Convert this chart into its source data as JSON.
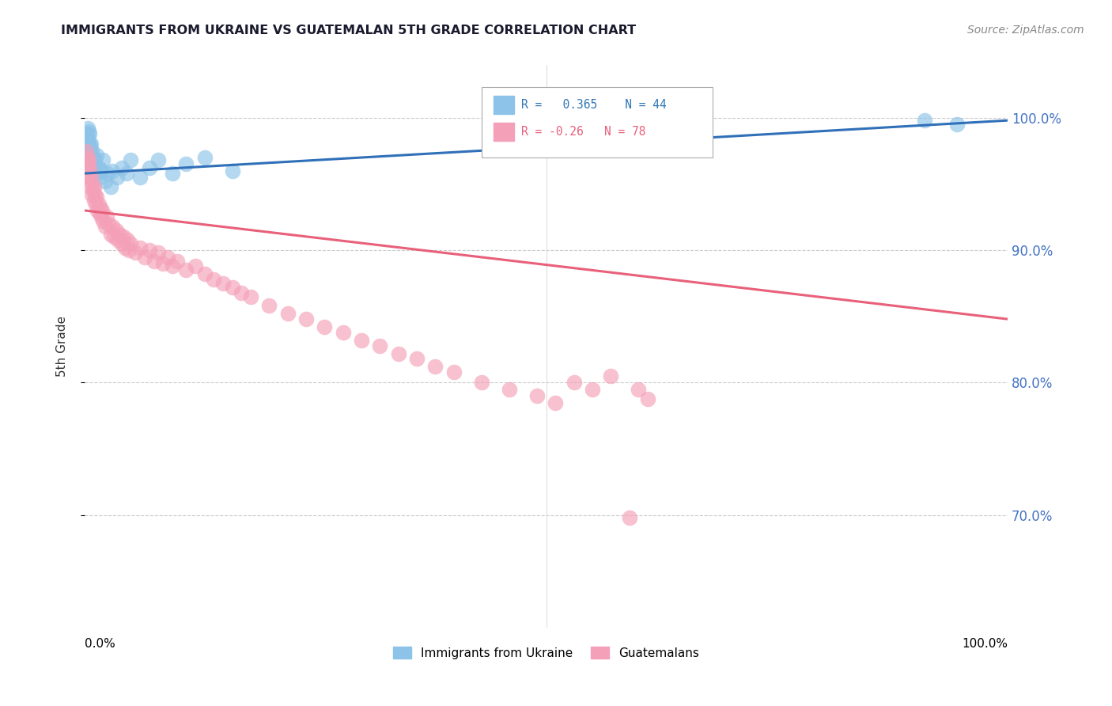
{
  "title": "IMMIGRANTS FROM UKRAINE VS GUATEMALAN 5TH GRADE CORRELATION CHART",
  "source": "Source: ZipAtlas.com",
  "ylabel": "5th Grade",
  "ytick_labels": [
    "100.0%",
    "90.0%",
    "80.0%",
    "70.0%"
  ],
  "ytick_values": [
    1.0,
    0.9,
    0.8,
    0.7
  ],
  "xlim": [
    0.0,
    1.0
  ],
  "ylim": [
    0.615,
    1.04
  ],
  "ukraine_R": 0.365,
  "ukraine_N": 44,
  "guatemalan_R": -0.26,
  "guatemalan_N": 78,
  "ukraine_color": "#8DC3E8",
  "guatemalan_color": "#F4A0B8",
  "ukraine_line_color": "#3070B8",
  "guatemalan_line_color": "#E8607A",
  "legend_label_ukraine": "Immigrants from Ukraine",
  "legend_label_guatemalan": "Guatemalans",
  "ukraine_x": [
    0.001,
    0.002,
    0.002,
    0.003,
    0.003,
    0.003,
    0.004,
    0.004,
    0.004,
    0.005,
    0.005,
    0.005,
    0.006,
    0.006,
    0.007,
    0.007,
    0.008,
    0.008,
    0.009,
    0.01,
    0.011,
    0.012,
    0.013,
    0.015,
    0.016,
    0.018,
    0.02,
    0.022,
    0.025,
    0.028,
    0.03,
    0.035,
    0.04,
    0.045,
    0.05,
    0.06,
    0.07,
    0.08,
    0.095,
    0.11,
    0.13,
    0.16,
    0.91,
    0.945
  ],
  "ukraine_y": [
    0.978,
    0.982,
    0.988,
    0.972,
    0.985,
    0.992,
    0.975,
    0.982,
    0.99,
    0.972,
    0.98,
    0.988,
    0.968,
    0.978,
    0.972,
    0.98,
    0.965,
    0.975,
    0.97,
    0.962,
    0.968,
    0.958,
    0.972,
    0.962,
    0.955,
    0.96,
    0.968,
    0.952,
    0.958,
    0.948,
    0.96,
    0.955,
    0.962,
    0.958,
    0.968,
    0.955,
    0.962,
    0.968,
    0.958,
    0.965,
    0.97,
    0.96,
    0.998,
    0.995
  ],
  "guatemalan_x": [
    0.002,
    0.003,
    0.003,
    0.004,
    0.004,
    0.005,
    0.005,
    0.006,
    0.007,
    0.008,
    0.008,
    0.009,
    0.01,
    0.01,
    0.011,
    0.012,
    0.013,
    0.014,
    0.015,
    0.016,
    0.017,
    0.018,
    0.019,
    0.02,
    0.022,
    0.024,
    0.026,
    0.028,
    0.03,
    0.032,
    0.034,
    0.036,
    0.038,
    0.04,
    0.042,
    0.044,
    0.046,
    0.048,
    0.05,
    0.055,
    0.06,
    0.065,
    0.07,
    0.075,
    0.08,
    0.085,
    0.09,
    0.095,
    0.1,
    0.11,
    0.12,
    0.13,
    0.14,
    0.15,
    0.16,
    0.17,
    0.18,
    0.2,
    0.22,
    0.24,
    0.26,
    0.28,
    0.3,
    0.32,
    0.34,
    0.36,
    0.38,
    0.4,
    0.43,
    0.46,
    0.49,
    0.51,
    0.53,
    0.55,
    0.57,
    0.59,
    0.6,
    0.61
  ],
  "guatemalan_y": [
    0.975,
    0.97,
    0.965,
    0.96,
    0.968,
    0.955,
    0.962,
    0.948,
    0.955,
    0.942,
    0.95,
    0.945,
    0.938,
    0.948,
    0.942,
    0.935,
    0.94,
    0.93,
    0.935,
    0.928,
    0.932,
    0.925,
    0.93,
    0.922,
    0.918,
    0.925,
    0.92,
    0.912,
    0.918,
    0.91,
    0.915,
    0.908,
    0.912,
    0.905,
    0.91,
    0.902,
    0.908,
    0.9,
    0.905,
    0.898,
    0.902,
    0.895,
    0.9,
    0.892,
    0.898,
    0.89,
    0.895,
    0.888,
    0.892,
    0.885,
    0.888,
    0.882,
    0.878,
    0.875,
    0.872,
    0.868,
    0.865,
    0.858,
    0.852,
    0.848,
    0.842,
    0.838,
    0.832,
    0.828,
    0.822,
    0.818,
    0.812,
    0.808,
    0.8,
    0.795,
    0.79,
    0.785,
    0.8,
    0.795,
    0.805,
    0.698,
    0.795,
    0.788
  ],
  "guatemalan_trendline_start": 0.93,
  "guatemalan_trendline_end": 0.848,
  "ukraine_trendline_start": 0.958,
  "ukraine_trendline_end": 0.998
}
